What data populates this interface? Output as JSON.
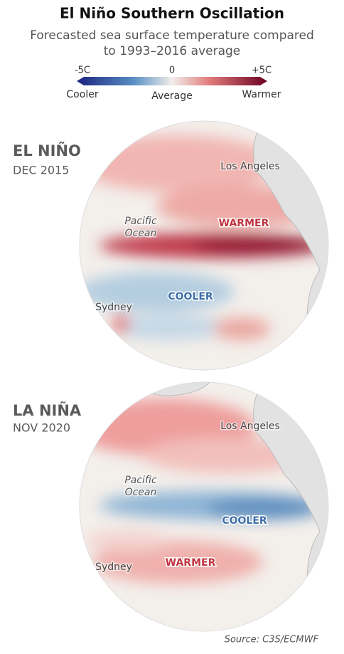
{
  "header": {
    "title": "El Niño Southern Oscillation",
    "subtitle_lines": [
      "Forecasted sea surface temperature compared",
      "to 1993–2016 average"
    ]
  },
  "legend": {
    "ticks": [
      "-5C",
      "0",
      "+5C"
    ],
    "labels": [
      "Cooler",
      "Average",
      "Warmer"
    ]
  },
  "panels": [
    {
      "label": "EL NIÑO",
      "date": "DEC 2015",
      "places": [
        "Los Angeles",
        "Sydney"
      ],
      "ocean_lines": [
        "Pacific",
        "Ocean"
      ],
      "warm_label": "WARMER",
      "cool_label": "COOLER"
    },
    {
      "label": "LA NIÑA",
      "date": "NOV 2020",
      "places": [
        "Los Angeles",
        "Sydney"
      ],
      "ocean_lines": [
        "Pacific",
        "Ocean"
      ],
      "warm_label": "WARMER",
      "cool_label": "COOLER"
    }
  ],
  "source": "Source: C3S/ECMWF"
}
